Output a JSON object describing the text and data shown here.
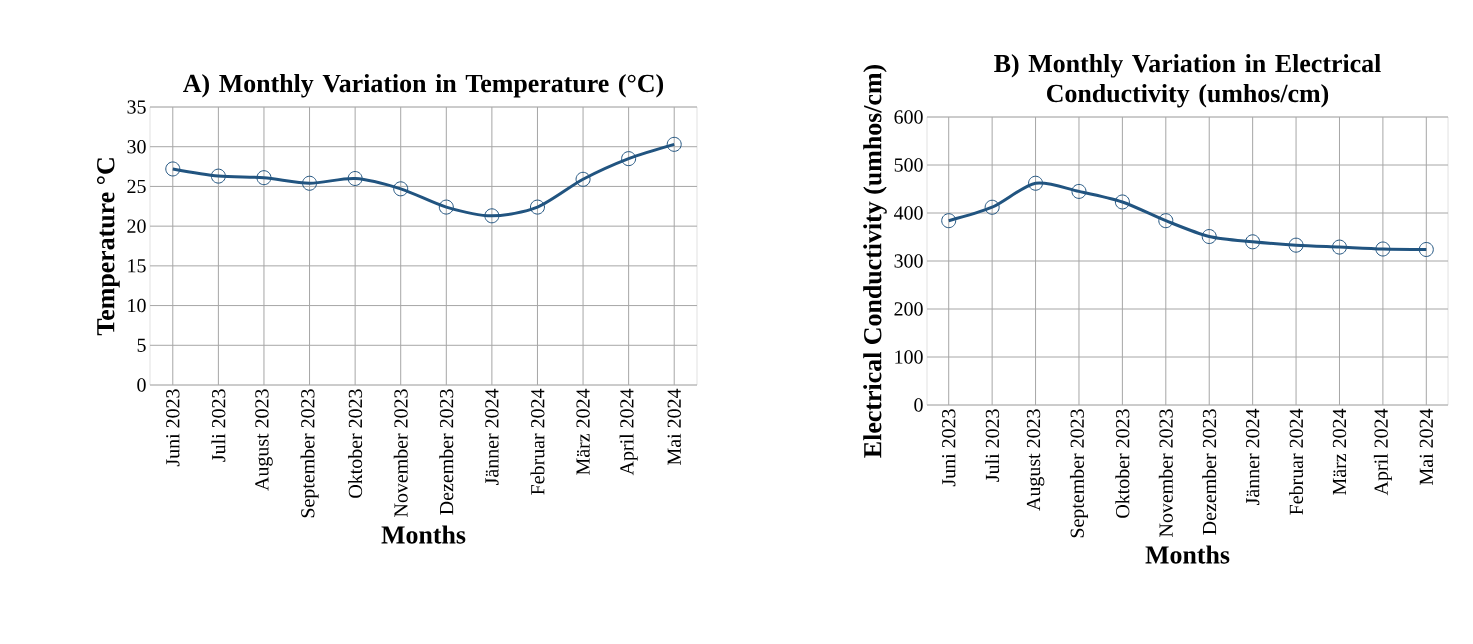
{
  "chart_data": [
    {
      "type": "line",
      "title": "A) Monthly Variation in Temperature (°C)",
      "xlabel": "Months",
      "ylabel": "Temperature °C",
      "categories": [
        "Juni 2023",
        "Juli 2023",
        "August 2023",
        "September 2023",
        "Oktober 2023",
        "November 2023",
        "Dezember 2023",
        "Jänner 2024",
        "Februar 2024",
        "März 2024",
        "April 2024",
        "Mai 2024"
      ],
      "values": [
        27.2,
        26.3,
        26.1,
        25.4,
        26.0,
        24.7,
        22.4,
        21.3,
        22.4,
        25.9,
        28.5,
        30.3
      ],
      "color": "#215480",
      "ylim": [
        0,
        35
      ],
      "yticks": [
        0,
        5,
        10,
        15,
        20,
        25,
        30,
        35
      ],
      "grid": true,
      "marker": "circle"
    },
    {
      "type": "line",
      "title": "B) Monthly Variation in Electrical Conductivity (umhos/cm)",
      "xlabel": "Months",
      "ylabel": "Electrical Conductivity (umhos/cm)",
      "categories": [
        "Juni 2023",
        "Juli 2023",
        "August 2023",
        "September 2023",
        "Oktober 2023",
        "November 2023",
        "Dezember 2023",
        "Jänner 2024",
        "Februar 2024",
        "März 2024",
        "April 2024",
        "Mai 2024"
      ],
      "values": [
        384,
        412,
        462,
        445,
        423,
        384,
        351,
        340,
        333,
        329,
        325,
        324
      ],
      "color": "#215480",
      "ylim": [
        0,
        600
      ],
      "yticks": [
        0,
        100,
        200,
        300,
        400,
        500,
        600
      ],
      "grid": true,
      "marker": "circle"
    }
  ]
}
